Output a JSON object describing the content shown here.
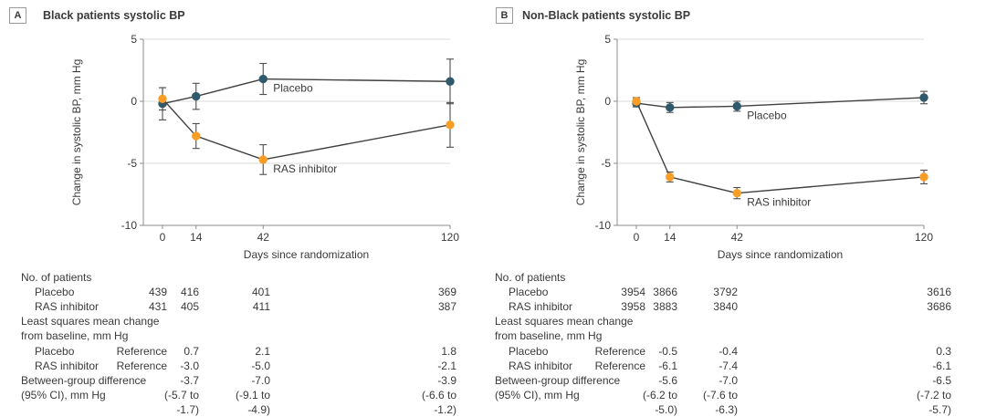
{
  "accent_colors": {
    "placebo_marker": "#2E5A6B",
    "ras_marker": "#F89E26",
    "line": "#404040",
    "grid": "#DBDBDB",
    "axis": "#8C8C8C",
    "text": "#3A3A3A"
  },
  "chart_data": [
    {
      "type": "line",
      "panel_label": "A",
      "title": "Black patients systolic BP",
      "xlabel": "Days since randomization",
      "ylabel": "Change in systolic BP, mm Hg",
      "x": [
        0,
        14,
        42,
        120
      ],
      "x_tick_labels": [
        "0",
        "14",
        "42",
        "120"
      ],
      "ylim": [
        -10,
        5
      ],
      "y_ticks": [
        5,
        0,
        -5,
        -10
      ],
      "y_tick_labels": [
        "5",
        "0",
        "-5",
        "-10"
      ],
      "gridlines_y": [
        5,
        0,
        -5
      ],
      "legend_position": "inline-labels",
      "series": [
        {
          "name": "Placebo",
          "marker_color": "#2E5A6B",
          "values": [
            -0.2,
            0.4,
            1.8,
            1.6
          ],
          "err": [
            1.3,
            1.05,
            1.25,
            1.8
          ]
        },
        {
          "name": "RAS inhibitor",
          "marker_color": "#F89E26",
          "values": [
            0.2,
            -2.8,
            -4.7,
            -1.9
          ],
          "err": [
            0.9,
            1.0,
            1.2,
            1.8
          ]
        }
      ]
    },
    {
      "type": "line",
      "panel_label": "B",
      "title": "Non-Black patients systolic BP",
      "xlabel": "Days since randomization",
      "ylabel": "Change in systolic BP, mm Hg",
      "x": [
        0,
        14,
        42,
        120
      ],
      "x_tick_labels": [
        "0",
        "14",
        "42",
        "120"
      ],
      "ylim": [
        -10,
        5
      ],
      "y_ticks": [
        5,
        0,
        -5,
        -10
      ],
      "y_tick_labels": [
        "5",
        "0",
        "-5",
        "-10"
      ],
      "gridlines_y": [
        5,
        0,
        -5
      ],
      "legend_position": "inline-labels",
      "series": [
        {
          "name": "Placebo",
          "marker_color": "#2E5A6B",
          "values": [
            -0.15,
            -0.5,
            -0.4,
            0.3
          ],
          "err": [
            0.3,
            0.4,
            0.4,
            0.5
          ]
        },
        {
          "name": "RAS inhibitor",
          "marker_color": "#F89E26",
          "values": [
            0.0,
            -6.1,
            -7.4,
            -6.1
          ],
          "err": [
            0.3,
            0.4,
            0.45,
            0.55
          ]
        }
      ]
    }
  ],
  "tables": [
    {
      "rows": [
        {
          "label": "No. of patients",
          "indent": 0,
          "cells": [
            "",
            "",
            "",
            ""
          ]
        },
        {
          "label": "Placebo",
          "indent": 1,
          "cells": [
            "439",
            "416",
            "401",
            "369"
          ]
        },
        {
          "label": "RAS inhibitor",
          "indent": 1,
          "cells": [
            "431",
            "405",
            "411",
            "387"
          ]
        },
        {
          "label": "Least squares mean change",
          "indent": 0,
          "cells": [
            "",
            "",
            "",
            ""
          ]
        },
        {
          "label": "from baseline, mm Hg",
          "indent": 0,
          "cells": [
            "",
            "",
            "",
            ""
          ]
        },
        {
          "label": "Placebo",
          "indent": 1,
          "cells": [
            "Reference",
            "0.7",
            "2.1",
            "1.8"
          ]
        },
        {
          "label": "RAS inhibitor",
          "indent": 1,
          "cells": [
            "Reference",
            "-3.0",
            "-5.0",
            "-2.1"
          ]
        },
        {
          "label": "Between-group difference",
          "indent": 0,
          "cells": [
            "",
            "-3.7",
            "-7.0",
            "-3.9"
          ]
        },
        {
          "label": "(95% CI), mm Hg",
          "indent": 0,
          "cells": [
            "",
            "(-5.7 to",
            "(-9.1 to",
            "(-6.6 to"
          ]
        },
        {
          "label": "",
          "indent": 0,
          "cells": [
            "",
            "-1.7)",
            "-4.9)",
            "-1.2)"
          ]
        }
      ]
    },
    {
      "rows": [
        {
          "label": "No. of patients",
          "indent": 0,
          "cells": [
            "",
            "",
            "",
            ""
          ]
        },
        {
          "label": "Placebo",
          "indent": 1,
          "cells": [
            "3954",
            "3866",
            "3792",
            "3616"
          ]
        },
        {
          "label": "RAS inhibitor",
          "indent": 1,
          "cells": [
            "3958",
            "3883",
            "3840",
            "3686"
          ]
        },
        {
          "label": "Least squares mean change",
          "indent": 0,
          "cells": [
            "",
            "",
            "",
            ""
          ]
        },
        {
          "label": "from baseline, mm Hg",
          "indent": 0,
          "cells": [
            "",
            "",
            "",
            ""
          ]
        },
        {
          "label": "Placebo",
          "indent": 1,
          "cells": [
            "Reference",
            "-0.5",
            "-0.4",
            "0.3"
          ]
        },
        {
          "label": "RAS inhibitor",
          "indent": 1,
          "cells": [
            "Reference",
            "-6.1",
            "-7.4",
            "-6.1"
          ]
        },
        {
          "label": "Between-group difference",
          "indent": 0,
          "cells": [
            "",
            "-5.6",
            "-7.0",
            "-6.5"
          ]
        },
        {
          "label": "(95% CI), mm Hg",
          "indent": 0,
          "cells": [
            "",
            "(-6.2 to",
            "(-7.6 to",
            "(-7.2 to"
          ]
        },
        {
          "label": "",
          "indent": 0,
          "cells": [
            "",
            "-5.0)",
            "-6.3)",
            "-5.7)"
          ]
        }
      ]
    }
  ]
}
